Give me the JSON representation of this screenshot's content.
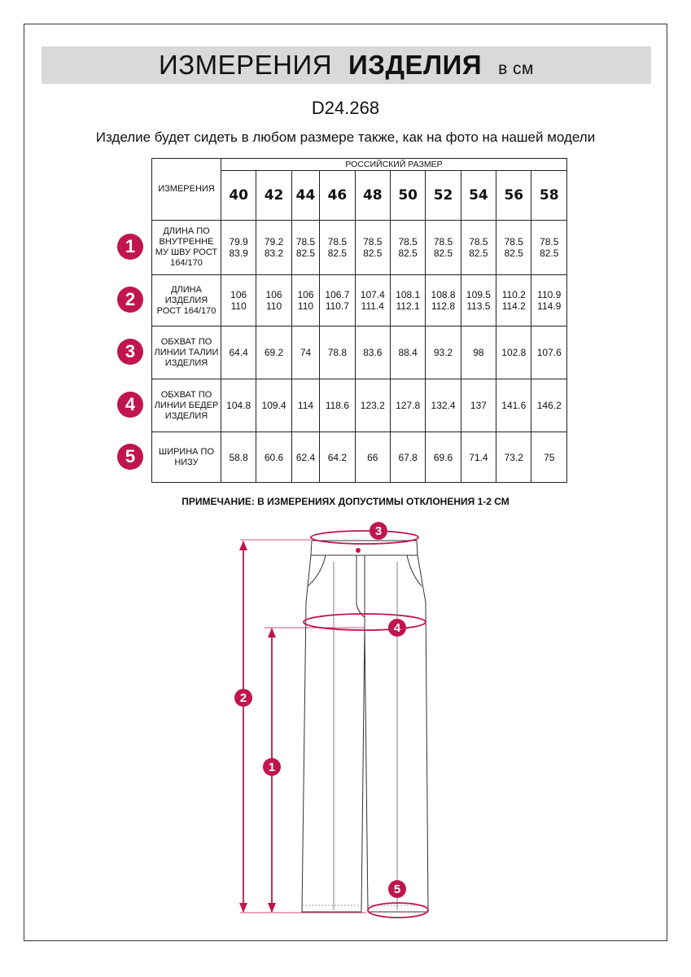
{
  "title": {
    "part1": "ИЗМЕРЕНИЯ",
    "part2": "ИЗДЕЛИЯ",
    "unit": "в см"
  },
  "code": "D24.268",
  "subtitle": "Изделие будет сидеть в любом размере также, как на фото на нашей модели",
  "table": {
    "corner": "ИЗМЕРЕНИЯ",
    "group_header": "РОССИЙСКИЙ РАЗМЕР",
    "sizes": [
      "40",
      "42",
      "44",
      "46",
      "48",
      "50",
      "52",
      "54",
      "56",
      "58"
    ],
    "rows": [
      {
        "num": "1",
        "label": "ДЛИНА ПО ВНУТРЕННЕ МУ ШВУ РОСТ 164/170",
        "values": [
          "79.9\n83.9",
          "79.2\n83.2",
          "78.5\n82.5",
          "78.5\n82.5",
          "78.5\n82.5",
          "78.5\n82.5",
          "78.5\n82.5",
          "78.5\n82.5",
          "78.5\n82.5",
          "78.5\n82.5"
        ]
      },
      {
        "num": "2",
        "label": "ДЛИНА ИЗДЕЛИЯ РОСТ 164/170",
        "values": [
          "106\n110",
          "106\n110",
          "106\n110",
          "106.7\n110.7",
          "107.4\n111.4",
          "108.1\n112.1",
          "108.8\n112.8",
          "109.5\n113.5",
          "110.2\n114.2",
          "110.9\n114.9"
        ]
      },
      {
        "num": "3",
        "label": "ОБХВАТ ПО ЛИНИИ ТАЛИИ ИЗДЕЛИЯ",
        "values": [
          "64.4",
          "69.2",
          "74",
          "78.8",
          "83.6",
          "88.4",
          "93.2",
          "98",
          "102.8",
          "107.6"
        ]
      },
      {
        "num": "4",
        "label": "ОБХВАТ ПО ЛИНИИ БЕДЕР ИЗДЕЛИЯ",
        "values": [
          "104.8",
          "109.4",
          "114",
          "118.6",
          "123.2",
          "127.8",
          "132.4",
          "137",
          "141.6",
          "146.2"
        ]
      },
      {
        "num": "5",
        "label": "ШИРИНА ПО НИЗУ",
        "values": [
          "58.8",
          "60.6",
          "62.4",
          "64.2",
          "66",
          "67.8",
          "69.6",
          "71.4",
          "73.2",
          "75"
        ]
      }
    ]
  },
  "note": "ПРИМЕЧАНИЕ: В ИЗМЕРЕНИЯХ ДОПУСТИМЫ ОТКЛОНЕНИЯ 1-2 СМ",
  "diagram_markers": {
    "waist": "3",
    "hip": "4",
    "length": "2",
    "inseam": "1",
    "hem": "5"
  },
  "colors": {
    "marker": "#c0154f",
    "title_bg": "#d9d9d9"
  }
}
